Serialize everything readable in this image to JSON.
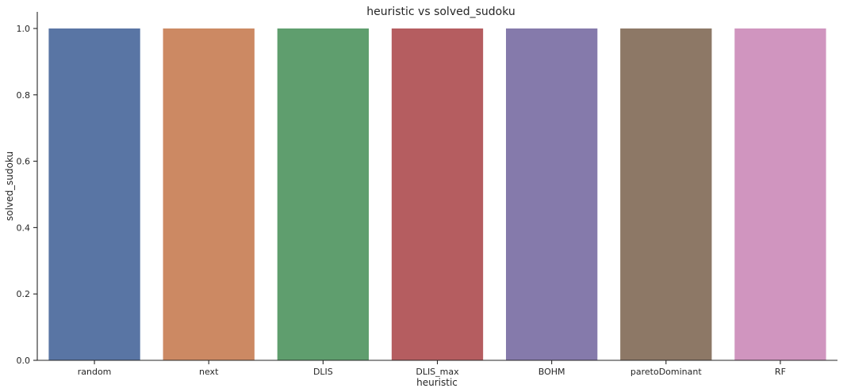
{
  "chart_data": {
    "type": "bar",
    "title": "heuristic vs solved_sudoku",
    "xlabel": "heuristic",
    "ylabel": "solved_sudoku",
    "categories": [
      "random",
      "next",
      "DLIS",
      "DLIS_max",
      "BOHM",
      "paretoDominant",
      "RF"
    ],
    "values": [
      1.0,
      1.0,
      1.0,
      1.0,
      1.0,
      1.0,
      1.0
    ],
    "colors": [
      "#5975a4",
      "#cc8963",
      "#5f9e6e",
      "#b55d60",
      "#857aab",
      "#8d7866",
      "#d095bf"
    ],
    "ylim": [
      0,
      1.05
    ],
    "yticks": [
      0.0,
      0.2,
      0.4,
      0.6,
      0.8,
      1.0
    ],
    "ytick_labels": [
      "0.0",
      "0.2",
      "0.4",
      "0.6",
      "0.8",
      "1.0"
    ],
    "grid": false,
    "legend": "none"
  }
}
